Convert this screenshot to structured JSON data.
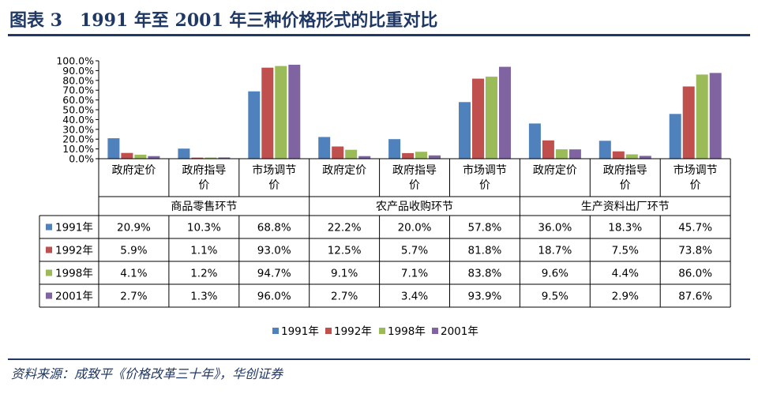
{
  "title": "图表 3　1991 年至 2001 年三种价格形式的比重对比",
  "source": "资料来源：成致平《价格改革三十年》，华创证券",
  "chart_data": {
    "type": "bar",
    "title": "",
    "xlabel": "",
    "ylabel": "",
    "ylim": [
      0,
      100
    ],
    "y_ticks": [
      "0.0%",
      "10.0%",
      "20.0%",
      "30.0%",
      "40.0%",
      "50.0%",
      "60.0%",
      "70.0%",
      "80.0%",
      "90.0%",
      "100.0%"
    ],
    "y_tick_values": [
      0,
      10,
      20,
      30,
      40,
      50,
      60,
      70,
      80,
      90,
      100
    ],
    "groups": [
      {
        "label": "商品零售环节",
        "categories": [
          [
            "政府定价"
          ],
          [
            "政府指导",
            "价"
          ],
          [
            "市场调节",
            "价"
          ]
        ]
      },
      {
        "label": "农产品收购环节",
        "categories": [
          [
            "政府定价"
          ],
          [
            "政府指导",
            "价"
          ],
          [
            "市场调节",
            "价"
          ]
        ]
      },
      {
        "label": "生产资料出厂环节",
        "categories": [
          [
            "政府定价"
          ],
          [
            "政府指导",
            "价"
          ],
          [
            "市场调节",
            "价"
          ]
        ]
      }
    ],
    "series": [
      {
        "name": "1991年",
        "color": "#4f81bd",
        "values": [
          20.9,
          10.3,
          68.8,
          22.2,
          20.0,
          57.8,
          36.0,
          18.3,
          45.7
        ],
        "labels": [
          "20.9%",
          "10.3%",
          "68.8%",
          "22.2%",
          "20.0%",
          "57.8%",
          "36.0%",
          "18.3%",
          "45.7%"
        ]
      },
      {
        "name": "1992年",
        "color": "#c0504d",
        "values": [
          5.9,
          1.1,
          93.0,
          12.5,
          5.7,
          81.8,
          18.7,
          7.5,
          73.8
        ],
        "labels": [
          "5.9%",
          "1.1%",
          "93.0%",
          "12.5%",
          "5.7%",
          "81.8%",
          "18.7%",
          "7.5%",
          "73.8%"
        ]
      },
      {
        "name": "1998年",
        "color": "#9bbb59",
        "values": [
          4.1,
          1.2,
          94.7,
          9.1,
          7.1,
          83.8,
          9.6,
          4.4,
          86.0
        ],
        "labels": [
          "4.1%",
          "1.2%",
          "94.7%",
          "9.1%",
          "7.1%",
          "83.8%",
          "9.6%",
          "4.4%",
          "86.0%"
        ]
      },
      {
        "name": "2001年",
        "color": "#8064a2",
        "values": [
          2.7,
          1.3,
          96.0,
          2.7,
          3.4,
          93.9,
          9.5,
          2.9,
          87.6
        ],
        "labels": [
          "2.7%",
          "1.3%",
          "96.0%",
          "2.7%",
          "3.4%",
          "93.9%",
          "9.5%",
          "2.9%",
          "87.6%"
        ]
      }
    ],
    "legend_position": "bottom",
    "grid": false
  }
}
